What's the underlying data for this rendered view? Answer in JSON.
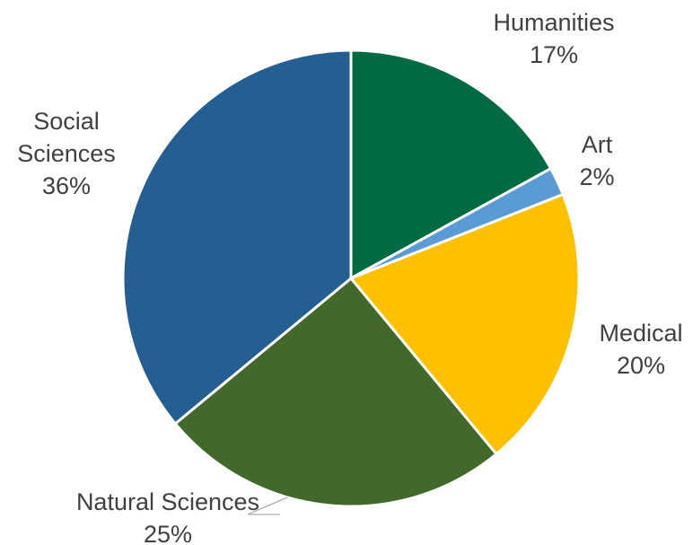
{
  "chart_data": {
    "type": "pie",
    "slices": [
      {
        "label_lines": [
          "Humanities"
        ],
        "label": "Humanities",
        "value": 17,
        "value_label": "17%",
        "color": "#006a43"
      },
      {
        "label_lines": [
          "Art"
        ],
        "label": "Art",
        "value": 2,
        "value_label": "2%",
        "color": "#5b9bd5"
      },
      {
        "label_lines": [
          "Medical"
        ],
        "label": "Medical",
        "value": 20,
        "value_label": "20%",
        "color": "#ffc000"
      },
      {
        "label_lines": [
          "Natural Sciences"
        ],
        "label": "Natural Sciences",
        "value": 25,
        "value_label": "25%",
        "color": "#43682b"
      },
      {
        "label_lines": [
          "Social",
          "Sciences"
        ],
        "label": "Social Sciences",
        "value": 36,
        "value_label": "36%",
        "color": "#255e91"
      }
    ],
    "start_angle_deg": 0,
    "direction": "clockwise",
    "legend": "none",
    "data_labels": "outside"
  }
}
